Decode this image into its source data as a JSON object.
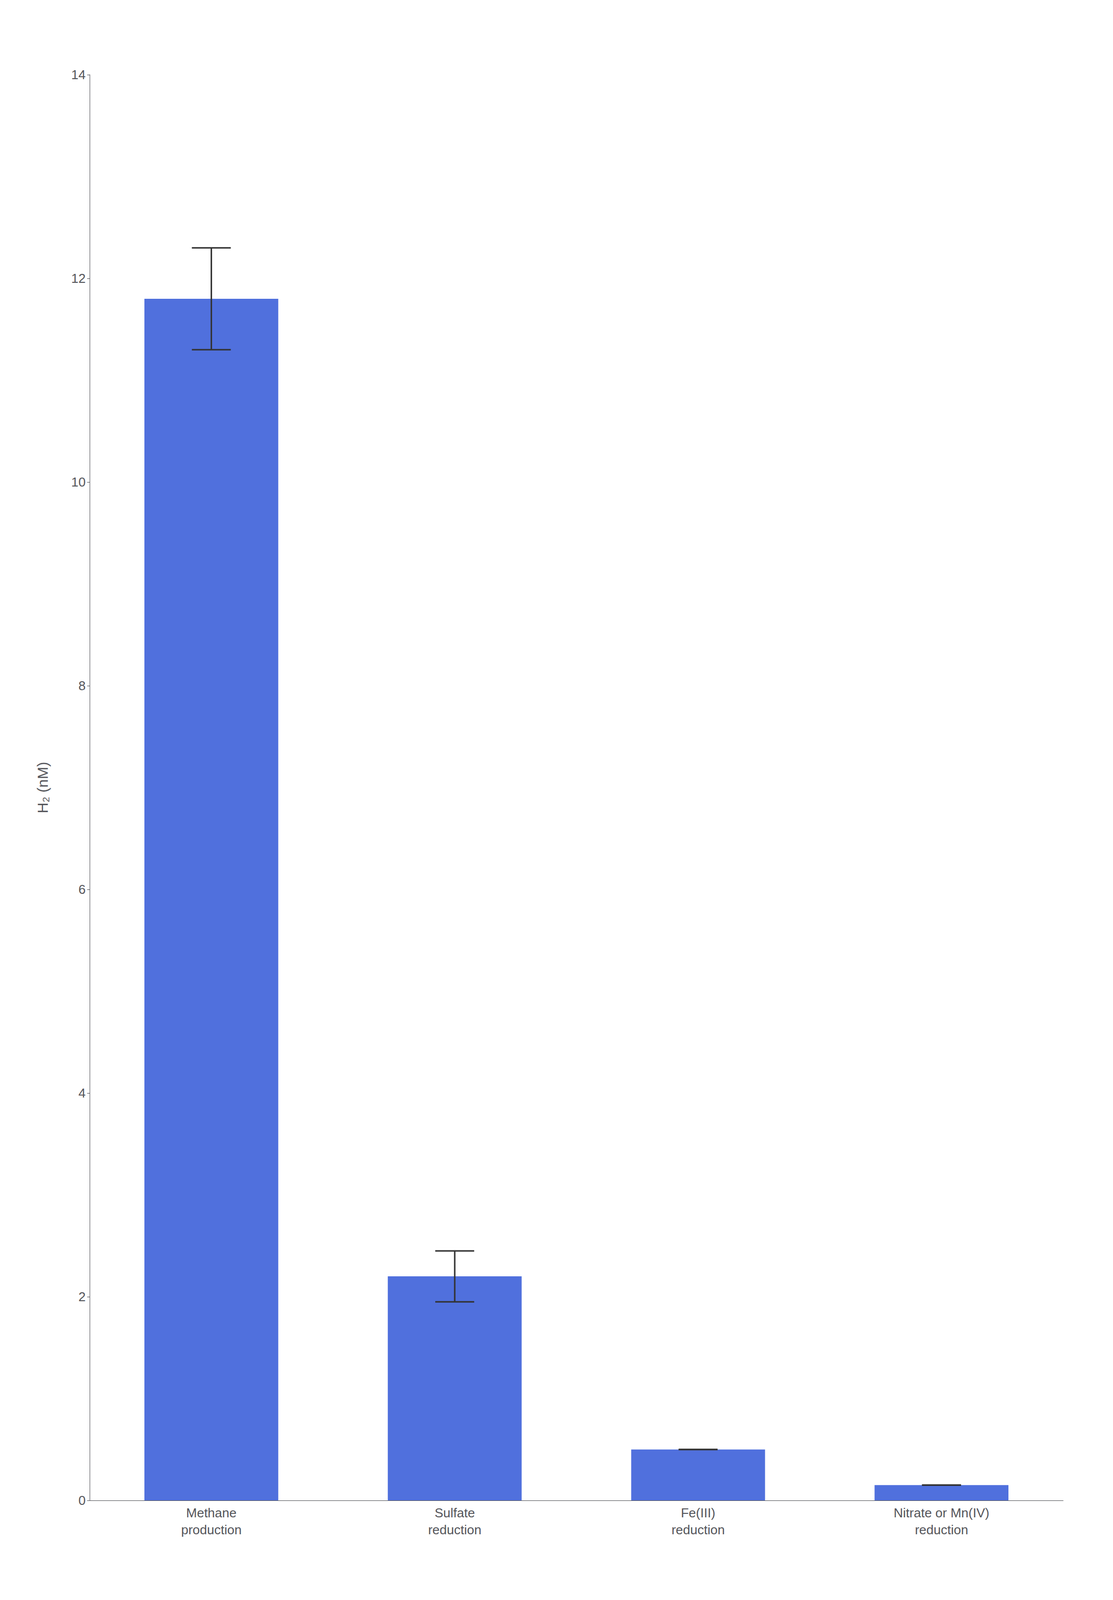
{
  "chart_data": {
    "type": "bar",
    "categories": [
      "Methane\nproduction",
      "Sulfate\nreduction",
      "Fe(III)\nreduction",
      "Nitrate or Mn(IV)\nreduction"
    ],
    "values": [
      11.8,
      2.2,
      0.5,
      0.15
    ],
    "errors_lower": [
      0.5,
      0.25,
      0.0,
      0.0
    ],
    "errors_upper": [
      0.5,
      0.25,
      0.0,
      0.0
    ],
    "ylabel": "H₂ (nM)",
    "ylim": [
      0,
      14
    ],
    "yticks": [
      0,
      2,
      4,
      6,
      8,
      10,
      12,
      14
    ],
    "grid": false
  }
}
